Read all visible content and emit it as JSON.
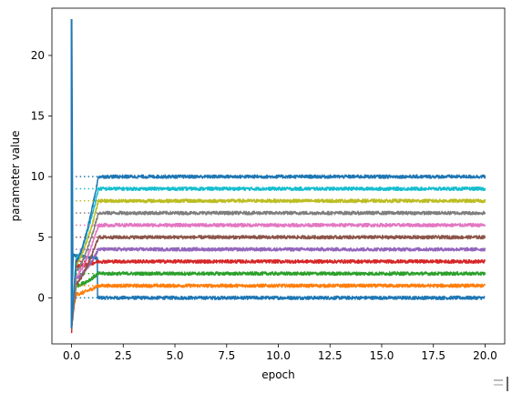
{
  "chart_data": {
    "type": "line",
    "title": "",
    "xlabel": "epoch",
    "ylabel": "parameter value",
    "xlim": [
      -0.95,
      20.95
    ],
    "ylim": [
      -3.8,
      23.9
    ],
    "xticks": [
      0.0,
      2.5,
      5.0,
      7.5,
      10.0,
      12.5,
      15.0,
      17.5,
      20.0
    ],
    "xtick_labels": [
      "0.0",
      "2.5",
      "5.0",
      "7.5",
      "10.0",
      "12.5",
      "15.0",
      "17.5",
      "20.0"
    ],
    "yticks": [
      0,
      5,
      10,
      15,
      20
    ],
    "ytick_labels": [
      "0",
      "5",
      "10",
      "15",
      "20"
    ],
    "grid": false,
    "legend": "none",
    "x_end": 20,
    "converge_epoch": 1.3,
    "spike": {
      "x": 0.0,
      "y": 23.0
    },
    "targets_dotted_from": 0.2,
    "series": [
      {
        "color": "#1f77b4",
        "target": 0,
        "start": -1.6,
        "early_mid": 3.5
      },
      {
        "color": "#ff7f0e",
        "target": 1,
        "start": -2.1,
        "early_mid": 0.3
      },
      {
        "color": "#2ca02c",
        "target": 2,
        "start": -2.3,
        "early_mid": 1.0
      },
      {
        "color": "#d62728",
        "target": 3,
        "start": -2.8,
        "early_mid": 2.6
      },
      {
        "color": "#9467bd",
        "target": 4,
        "start": -2.0,
        "early_mid": 1.6
      },
      {
        "color": "#8c564b",
        "target": 5,
        "start": -2.6,
        "early_mid": 1.2
      },
      {
        "color": "#e377c2",
        "target": 6,
        "start": -2.2,
        "early_mid": 1.8
      },
      {
        "color": "#7f7f7f",
        "target": 7,
        "start": -1.9,
        "early_mid": 2.2
      },
      {
        "color": "#bcbd22",
        "target": 8,
        "start": -2.4,
        "early_mid": 2.8
      },
      {
        "color": "#17becf",
        "target": 9,
        "start": -2.0,
        "early_mid": 3.2
      },
      {
        "color": "#1f77b4",
        "target": 10,
        "start": -2.5,
        "early_mid": 3.0
      }
    ]
  }
}
